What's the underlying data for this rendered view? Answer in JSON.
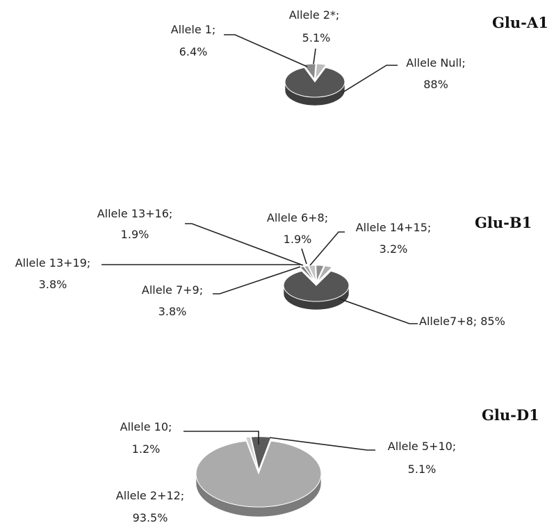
{
  "chart_data": [
    {
      "type": "pie",
      "title": "Glu-A1",
      "series": [
        {
          "label": "Allele 1",
          "value": 6.4,
          "value_text": "6.4%",
          "color": "#8a8a8a"
        },
        {
          "label": "Allele 2*",
          "value": 5.1,
          "value_text": "5.1%",
          "color": "#bdbdbd"
        },
        {
          "label": "Allele Null",
          "value": 88,
          "value_text": "88%",
          "color": "#555555"
        }
      ]
    },
    {
      "type": "pie",
      "title": "Glu-B1",
      "series": [
        {
          "label": "Allele 13+16",
          "value": 1.9,
          "value_text": "1.9%",
          "color": "#777777"
        },
        {
          "label": "Allele 6+8",
          "value": 1.9,
          "value_text": "1.9%",
          "color": "#a5a5a5"
        },
        {
          "label": "Allele 14+15",
          "value": 3.2,
          "value_text": "3.2%",
          "color": "#c4c4c4"
        },
        {
          "label": "Allele 13+19",
          "value": 3.8,
          "value_text": "3.8%",
          "color": "#8e8e8e"
        },
        {
          "label": "Allele 7+9",
          "value": 3.8,
          "value_text": "3.8%",
          "color": "#b0b0b0"
        },
        {
          "label": "Allele7+8",
          "value": 85,
          "value_text": "85%",
          "color": "#555555"
        }
      ]
    },
    {
      "type": "pie",
      "title": "Glu-D1",
      "series": [
        {
          "label": "Allele 10",
          "value": 1.2,
          "value_text": "1.2%",
          "color": "#d0d0d0"
        },
        {
          "label": "Allele  5+10",
          "value": 5.1,
          "value_text": "5.1%",
          "color": "#5a5a5a"
        },
        {
          "label": "Allele  2+12",
          "value": 93.5,
          "value_text": "93.5%",
          "color": "#ababab"
        }
      ]
    }
  ]
}
